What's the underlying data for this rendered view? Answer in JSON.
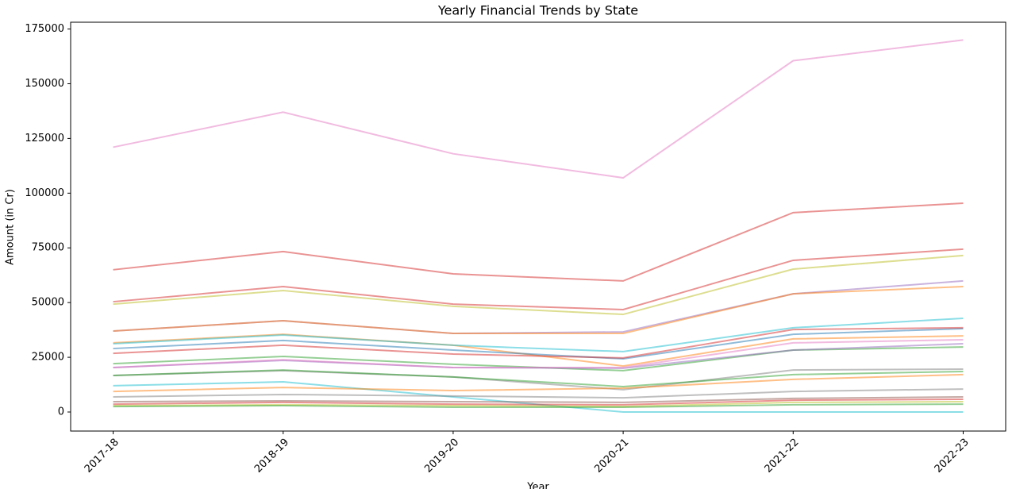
{
  "chart_data": {
    "type": "line",
    "title": "Yearly Financial Trends by State",
    "xlabel": "Year",
    "ylabel": "Amount (in Cr)",
    "categories": [
      "2017-18",
      "2018-19",
      "2019-20",
      "2020-21",
      "2021-22",
      "2022-23"
    ],
    "ylim": [
      -8700,
      178100
    ],
    "yticks": [
      0,
      25000,
      50000,
      75000,
      100000,
      125000,
      150000,
      175000
    ],
    "series": [
      {
        "color": "#e377c2",
        "values": [
          121000,
          137000,
          118000,
          107000,
          160500,
          170000
        ]
      },
      {
        "color": "#d62728",
        "values": [
          65000,
          73300,
          63100,
          59900,
          91100,
          95400
        ]
      },
      {
        "color": "#d62728",
        "values": [
          50400,
          57300,
          49300,
          46800,
          69300,
          74400
        ]
      },
      {
        "color": "#bcbd22",
        "values": [
          49300,
          55500,
          48300,
          44600,
          65300,
          71500
        ]
      },
      {
        "color": "#9467bd",
        "values": [
          37000,
          41700,
          35900,
          36600,
          54000,
          59900
        ]
      },
      {
        "color": "#ff7f0e",
        "values": [
          37000,
          41700,
          35900,
          35900,
          54000,
          57300
        ]
      },
      {
        "color": "#ff7f0e",
        "values": [
          31600,
          35500,
          30500,
          21000,
          33400,
          34800
        ]
      },
      {
        "color": "#17becf",
        "values": [
          31200,
          35200,
          30500,
          27600,
          38500,
          42800
        ]
      },
      {
        "color": "#1f77b4",
        "values": [
          29000,
          32700,
          28300,
          24300,
          35500,
          38100
        ]
      },
      {
        "color": "#d62728",
        "values": [
          26800,
          30500,
          26500,
          24700,
          37700,
          38500
        ]
      },
      {
        "color": "#2ca02c",
        "values": [
          22100,
          25400,
          21800,
          18900,
          28300,
          29700
        ]
      },
      {
        "color": "#9467bd",
        "values": [
          20300,
          23600,
          20300,
          20000,
          28300,
          31200
        ]
      },
      {
        "color": "#e377c2",
        "values": [
          20300,
          23900,
          20300,
          20300,
          31600,
          33000
        ]
      },
      {
        "color": "#7f7f7f",
        "values": [
          16700,
          18900,
          16000,
          10200,
          19200,
          19600
        ]
      },
      {
        "color": "#2ca02c",
        "values": [
          16700,
          19200,
          16000,
          11600,
          17100,
          18500
        ]
      },
      {
        "color": "#17becf",
        "values": [
          12000,
          13800,
          6900,
          0,
          0,
          0
        ]
      },
      {
        "color": "#ff7f0e",
        "values": [
          9400,
          11200,
          9800,
          10900,
          14900,
          17100
        ]
      },
      {
        "color": "#7f7f7f",
        "values": [
          6900,
          8000,
          7300,
          6500,
          9400,
          10500
        ]
      },
      {
        "color": "#8c564b",
        "values": [
          4700,
          5100,
          4700,
          4400,
          6200,
          6900
        ]
      },
      {
        "color": "#d62728",
        "values": [
          3600,
          4400,
          3600,
          3300,
          5400,
          5800
        ]
      },
      {
        "color": "#bcbd22",
        "values": [
          2900,
          3300,
          2900,
          2500,
          4400,
          4700
        ]
      },
      {
        "color": "#2ca02c",
        "values": [
          2500,
          2900,
          2200,
          2200,
          3300,
          3600
        ]
      }
    ]
  }
}
